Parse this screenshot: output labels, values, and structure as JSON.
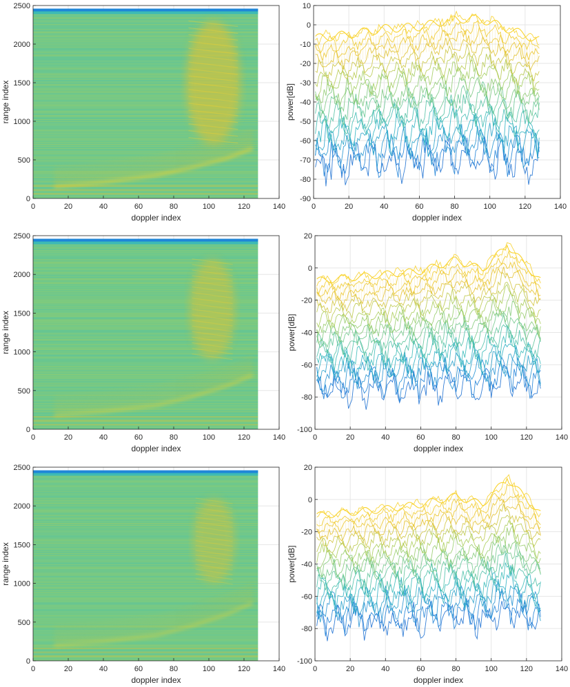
{
  "colors": {
    "map_stops": [
      "#1a4fc8",
      "#1f86d8",
      "#2fb7c0",
      "#6cc88f",
      "#a9cd5a",
      "#e7c12f",
      "#f9d32c"
    ],
    "axis": "#262626",
    "grid": "#e6e6e6"
  },
  "chart_data": [
    {
      "type": "heatmap",
      "panel": "row1-left",
      "xlabel": "doppler index",
      "ylabel": "range index",
      "xlim": [
        0,
        140
      ],
      "ylim": [
        0,
        2500
      ],
      "xticks": [
        0,
        20,
        40,
        60,
        80,
        100,
        120,
        140
      ],
      "yticks": [
        0,
        500,
        1000,
        1500,
        2000,
        2500
      ],
      "data_extent": {
        "x": [
          0,
          128
        ],
        "y": [
          0,
          2460
        ]
      },
      "grid": true,
      "features": {
        "curve_points": [
          [
            12,
            150
          ],
          [
            40,
            210
          ],
          [
            70,
            300
          ],
          [
            90,
            400
          ],
          [
            110,
            520
          ],
          [
            125,
            650
          ]
        ],
        "blob": {
          "x": [
            90,
            115
          ],
          "y": [
            700,
            2300
          ]
        },
        "strength": 1.0
      }
    },
    {
      "type": "line",
      "panel": "row1-right",
      "xlabel": "doppler index",
      "ylabel": "power[dB]",
      "xlim": [
        0,
        140
      ],
      "ylim": [
        -90,
        10
      ],
      "xticks": [
        0,
        20,
        40,
        60,
        80,
        100,
        120,
        140
      ],
      "yticks": [
        -90,
        -80,
        -70,
        -60,
        -50,
        -40,
        -30,
        -20,
        -10,
        0,
        10
      ],
      "grid": true,
      "waterfall": {
        "x_range": [
          1,
          128
        ],
        "levels": [
          -74,
          -70,
          -66,
          -62,
          -58,
          -54,
          -50,
          -46,
          -42,
          -38,
          -34,
          -30,
          -26,
          -22,
          -18,
          -14,
          -10
        ],
        "envelope_top": [
          [
            1,
            -7
          ],
          [
            20,
            -5
          ],
          [
            40,
            -2
          ],
          [
            60,
            -1
          ],
          [
            80,
            3
          ],
          [
            95,
            3
          ],
          [
            110,
            -2
          ],
          [
            128,
            -8
          ]
        ],
        "bottom_min": -88,
        "peak": {
          "x": 78,
          "y": 5
        }
      }
    },
    {
      "type": "heatmap",
      "panel": "row2-left",
      "xlabel": "doppler index",
      "ylabel": "range index",
      "xlim": [
        0,
        140
      ],
      "ylim": [
        0,
        2500
      ],
      "xticks": [
        0,
        20,
        40,
        60,
        80,
        100,
        120,
        140
      ],
      "yticks": [
        0,
        500,
        1000,
        1500,
        2000,
        2500
      ],
      "data_extent": {
        "x": [
          0,
          128
        ],
        "y": [
          0,
          2460
        ]
      },
      "grid": true,
      "features": {
        "curve_points": [
          [
            12,
            180
          ],
          [
            40,
            230
          ],
          [
            70,
            310
          ],
          [
            90,
            420
          ],
          [
            110,
            560
          ],
          [
            125,
            700
          ]
        ],
        "blob": {
          "x": [
            92,
            112
          ],
          "y": [
            900,
            2200
          ]
        },
        "strength": 0.8
      }
    },
    {
      "type": "line",
      "panel": "row2-right",
      "xlabel": "doppler index",
      "ylabel": "power[dB]",
      "xlim": [
        0,
        140
      ],
      "ylim": [
        -100,
        20
      ],
      "xticks": [
        0,
        20,
        40,
        60,
        80,
        100,
        120,
        140
      ],
      "yticks": [
        -100,
        -80,
        -60,
        -40,
        -20,
        0,
        20
      ],
      "grid": true,
      "waterfall": {
        "x_range": [
          1,
          128
        ],
        "levels": [
          -76,
          -72,
          -68,
          -64,
          -60,
          -56,
          -52,
          -48,
          -44,
          -40,
          -36,
          -32,
          -28,
          -24,
          -20,
          -16,
          -12,
          -8
        ],
        "envelope_top": [
          [
            1,
            -8
          ],
          [
            20,
            -6
          ],
          [
            40,
            -4
          ],
          [
            60,
            -2
          ],
          [
            80,
            5
          ],
          [
            95,
            -1
          ],
          [
            109,
            14
          ],
          [
            128,
            -8
          ]
        ],
        "bottom_min": -88,
        "peak": {
          "x": 109,
          "y": 14
        }
      }
    },
    {
      "type": "heatmap",
      "panel": "row3-left",
      "xlabel": "doppler index",
      "ylabel": "range index",
      "xlim": [
        0,
        140
      ],
      "ylim": [
        0,
        2500
      ],
      "xticks": [
        0,
        20,
        40,
        60,
        80,
        100,
        120,
        140
      ],
      "yticks": [
        0,
        500,
        1000,
        1500,
        2000,
        2500
      ],
      "data_extent": {
        "x": [
          0,
          128
        ],
        "y": [
          0,
          2460
        ]
      },
      "grid": true,
      "features": {
        "curve_points": [
          [
            12,
            200
          ],
          [
            40,
            250
          ],
          [
            70,
            330
          ],
          [
            90,
            450
          ],
          [
            110,
            600
          ],
          [
            125,
            750
          ]
        ],
        "blob": {
          "x": [
            94,
            112
          ],
          "y": [
            1000,
            2100
          ]
        },
        "strength": 0.7
      }
    },
    {
      "type": "line",
      "panel": "row3-right",
      "xlabel": "doppler index",
      "ylabel": "power[dB]",
      "xlim": [
        0,
        140
      ],
      "ylim": [
        -100,
        20
      ],
      "xticks": [
        0,
        20,
        40,
        60,
        80,
        100,
        120,
        140
      ],
      "yticks": [
        -100,
        -80,
        -60,
        -40,
        -20,
        0,
        20
      ],
      "grid": true,
      "waterfall": {
        "x_range": [
          1,
          128
        ],
        "levels": [
          -76,
          -72,
          -68,
          -64,
          -60,
          -56,
          -52,
          -48,
          -44,
          -40,
          -36,
          -32,
          -28,
          -24,
          -20,
          -16,
          -12,
          -8
        ],
        "envelope_top": [
          [
            1,
            -10
          ],
          [
            20,
            -8
          ],
          [
            40,
            -6
          ],
          [
            60,
            -3
          ],
          [
            80,
            2
          ],
          [
            95,
            -3
          ],
          [
            109,
            13
          ],
          [
            128,
            -9
          ]
        ],
        "bottom_min": -88,
        "peak": {
          "x": 109,
          "y": 13
        }
      }
    }
  ]
}
